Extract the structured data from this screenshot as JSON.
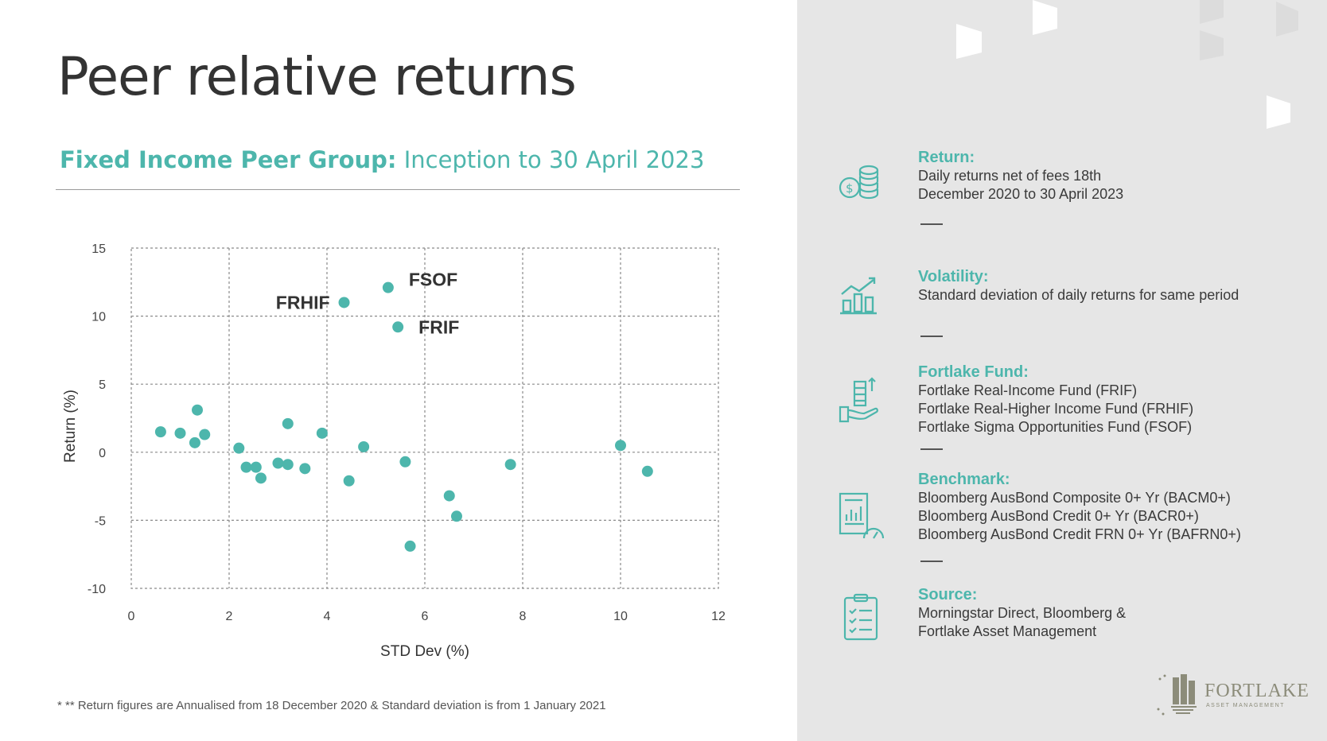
{
  "title": "Peer relative returns",
  "subtitle": {
    "bold": "Fixed Income Peer Group:",
    "rest": " Inception to 30 April 2023"
  },
  "footnote": "* ** Return figures are Annualised from 18 December 2020 & Standard deviation is from 1 January 2021",
  "colors": {
    "accent": "#4db6ac",
    "panel": "#e6e6e6",
    "title": "#333333"
  },
  "chart_data": {
    "type": "scatter",
    "xlabel": "STD Dev (%)",
    "ylabel": "Return (%)",
    "xlim": [
      0,
      12
    ],
    "ylim": [
      -10,
      15
    ],
    "x_ticks": [
      0,
      2,
      4,
      6,
      8,
      10,
      12
    ],
    "y_ticks": [
      15,
      10,
      5,
      0,
      -5,
      -10
    ],
    "grid": true,
    "point_color": "#4db6ac",
    "points": [
      {
        "x": 0.6,
        "y": 1.5
      },
      {
        "x": 1.0,
        "y": 1.4
      },
      {
        "x": 1.3,
        "y": 0.7
      },
      {
        "x": 1.35,
        "y": 3.1
      },
      {
        "x": 1.5,
        "y": 1.3
      },
      {
        "x": 2.2,
        "y": 0.3
      },
      {
        "x": 2.35,
        "y": -1.1
      },
      {
        "x": 2.55,
        "y": -1.1
      },
      {
        "x": 2.65,
        "y": -1.9
      },
      {
        "x": 3.0,
        "y": -0.8
      },
      {
        "x": 3.2,
        "y": -0.9
      },
      {
        "x": 3.2,
        "y": 2.1
      },
      {
        "x": 3.55,
        "y": -1.2
      },
      {
        "x": 3.9,
        "y": 1.4
      },
      {
        "x": 4.45,
        "y": -2.1
      },
      {
        "x": 4.75,
        "y": 0.4
      },
      {
        "x": 4.35,
        "y": 11.0,
        "label": "FRHIF"
      },
      {
        "x": 5.25,
        "y": 12.1,
        "label": "FSOF"
      },
      {
        "x": 5.45,
        "y": 9.2,
        "label": "FRIF"
      },
      {
        "x": 5.6,
        "y": -0.7
      },
      {
        "x": 5.7,
        "y": -6.9
      },
      {
        "x": 6.5,
        "y": -3.2
      },
      {
        "x": 6.65,
        "y": -4.7
      },
      {
        "x": 7.75,
        "y": -0.9
      },
      {
        "x": 10.0,
        "y": 0.5
      },
      {
        "x": 10.55,
        "y": -1.4
      }
    ]
  },
  "sections": [
    {
      "heading": "Return:",
      "icon": "coins-icon",
      "lines": [
        "Daily returns net of fees 18th",
        "December 2020 to 30 April 2023"
      ]
    },
    {
      "heading": "Volatility:",
      "icon": "bar-chart-trend-icon",
      "lines": [
        "Standard deviation of daily returns for same period"
      ]
    },
    {
      "heading": "Fortlake Fund:",
      "icon": "hand-money-icon",
      "lines": [
        "Fortlake Real-Income Fund (FRIF)",
        "Fortlake Real-Higher Income Fund (FRHIF)",
        "Fortlake Sigma Opportunities Fund (FSOF)"
      ]
    },
    {
      "heading": "Benchmark:",
      "icon": "report-gauge-icon",
      "lines": [
        "Bloomberg AusBond Composite 0+ Yr (BACM0+)",
        "Bloomberg AusBond Credit 0+ Yr (BACR0+)",
        "Bloomberg AusBond Credit FRN 0+ Yr (BAFRN0+)"
      ]
    },
    {
      "heading": "Source:",
      "icon": "clipboard-checklist-icon",
      "lines": [
        "Morningstar Direct, Bloomberg &",
        "Fortlake Asset Management"
      ]
    }
  ],
  "logo": {
    "name": "FORTLAKE",
    "tagline": "ASSET MANAGEMENT"
  }
}
